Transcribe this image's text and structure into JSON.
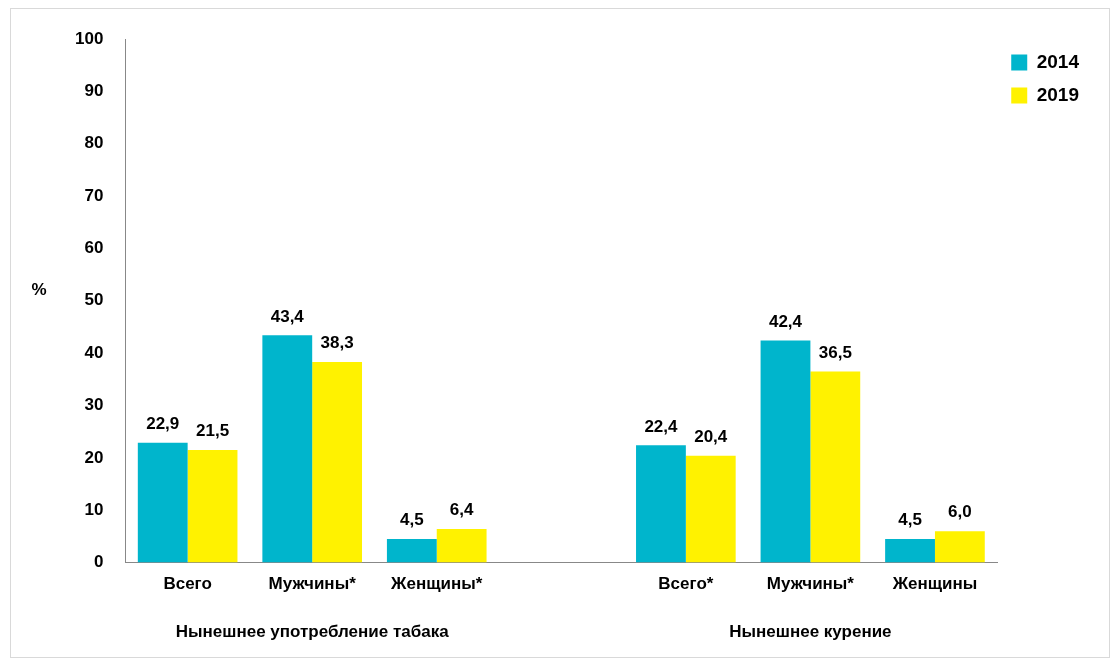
{
  "chart_data": {
    "type": "bar",
    "ylabel": "%",
    "categories": [
      "Всего",
      "Мужчины*",
      "Женщины*",
      null,
      "Всего*",
      "Мужчины*",
      "Женщины"
    ],
    "series": [
      {
        "name": "2014",
        "color": "#00b5cc",
        "values": [
          22.9,
          43.4,
          4.5,
          null,
          22.4,
          42.4,
          4.5
        ],
        "value_labels": [
          "22,9",
          "43,4",
          "4,5",
          null,
          "22,4",
          "42,4",
          "4,5"
        ]
      },
      {
        "name": "2019",
        "color": "#fff200",
        "values": [
          21.5,
          38.3,
          6.4,
          null,
          20.4,
          36.5,
          6.0
        ],
        "value_labels": [
          "21,5",
          "38,3",
          "6,4",
          null,
          "20,4",
          "36,5",
          "6,0"
        ]
      }
    ],
    "ylim": [
      0,
      100
    ],
    "yticks": [
      0,
      10,
      20,
      30,
      40,
      50,
      60,
      70,
      80,
      90,
      100
    ],
    "grid": false,
    "legend": "top right",
    "annotations": [
      "Нынешнее употребление табака",
      "Нынешнее курение"
    ]
  }
}
